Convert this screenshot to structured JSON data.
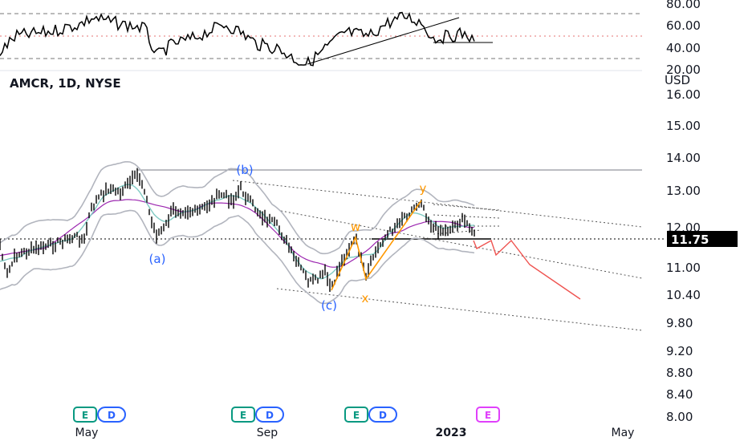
{
  "chart_data": {
    "type": "line",
    "title": "AMCR, 1D, NYSE",
    "currency": "USD",
    "last_price": "11.75",
    "price_axis_ticks": [
      "16.00",
      "15.00",
      "14.00",
      "13.00",
      "12.00",
      "11.00",
      "10.40",
      "9.80",
      "9.20",
      "8.80",
      "8.40",
      "8.00"
    ],
    "oscillator_axis_ticks": [
      "80.00",
      "60.00",
      "40.00",
      "20.00"
    ],
    "time_axis_labels": [
      "May",
      "Sep",
      "2023",
      "May"
    ],
    "wave_labels": [
      {
        "text": "(a)",
        "price": 11.25,
        "color": "#2962ff"
      },
      {
        "text": "(b)",
        "price": 13.6,
        "color": "#2962ff"
      },
      {
        "text": "(c)",
        "price": 10.35,
        "color": "#2962ff"
      },
      {
        "text": "w",
        "price": 12.05,
        "color": "#ff9800"
      },
      {
        "text": "x",
        "price": 10.42,
        "color": "#ff9800"
      },
      {
        "text": "y",
        "price": 13.0,
        "color": "#ff9800"
      }
    ],
    "events": [
      {
        "label": "E",
        "label2": "D"
      },
      {
        "label": "E",
        "label2": "D"
      },
      {
        "label": "E",
        "label2": "D"
      },
      {
        "label": "E"
      }
    ],
    "colors": {
      "price": "#000000",
      "bollinger": "#b2b5be",
      "fast_ma": "#80cbc4",
      "slow_ma": "#9c27b0",
      "wave_primary": "#2962ff",
      "wave_secondary": "#ff9800",
      "projection": "#ef5350",
      "earnings": "#089981",
      "dividend": "#2962ff",
      "future_earnings": "#e040fb"
    }
  }
}
